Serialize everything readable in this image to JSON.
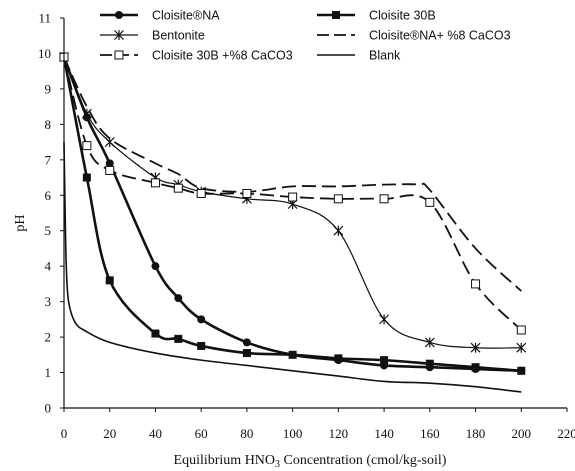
{
  "chart_data": {
    "type": "line",
    "title": "",
    "xlabel": "Equilibrium HNO3 Concentration (cmol/kg-soil)",
    "xlabel_parts": {
      "before": "Equilibrium HNO",
      "sub": "3",
      "after": " Concentration (cmol/kg-soil)"
    },
    "ylabel": "pH",
    "xlim": [
      0,
      220
    ],
    "ylim": [
      0,
      11
    ],
    "xticks": [
      "0",
      "20",
      "40",
      "60",
      "80",
      "100",
      "120",
      "140",
      "160",
      "180",
      "200",
      "220"
    ],
    "yticks": [
      "0",
      "1",
      "2",
      "3",
      "4",
      "5",
      "6",
      "7",
      "8",
      "9",
      "10",
      "11"
    ],
    "grid": false,
    "legend_position": "top",
    "series": [
      {
        "name": "Cloisite®NA",
        "marker": "filled-circle",
        "dash": "solid",
        "points": [
          [
            0,
            9.9
          ],
          [
            10,
            8.2
          ],
          [
            20,
            6.9
          ],
          [
            40,
            4.0
          ],
          [
            50,
            3.1
          ],
          [
            60,
            2.5
          ],
          [
            80,
            1.85
          ],
          [
            100,
            1.5
          ],
          [
            120,
            1.35
          ],
          [
            140,
            1.2
          ],
          [
            160,
            1.15
          ],
          [
            180,
            1.1
          ],
          [
            200,
            1.05
          ]
        ]
      },
      {
        "name": "Cloisite 30B",
        "marker": "filled-square",
        "dash": "solid",
        "points": [
          [
            0,
            9.9
          ],
          [
            10,
            6.5
          ],
          [
            20,
            3.6
          ],
          [
            40,
            2.1
          ],
          [
            50,
            1.95
          ],
          [
            60,
            1.75
          ],
          [
            80,
            1.55
          ],
          [
            100,
            1.5
          ],
          [
            120,
            1.4
          ],
          [
            140,
            1.35
          ],
          [
            160,
            1.25
          ],
          [
            180,
            1.15
          ],
          [
            200,
            1.05
          ]
        ]
      },
      {
        "name": "Bentonite",
        "marker": "asterisk",
        "dash": "solid",
        "points": [
          [
            0,
            9.9
          ],
          [
            10,
            8.3
          ],
          [
            20,
            7.5
          ],
          [
            40,
            6.5
          ],
          [
            50,
            6.3
          ],
          [
            60,
            6.1
          ],
          [
            80,
            5.9
          ],
          [
            100,
            5.75
          ],
          [
            120,
            5.0
          ],
          [
            140,
            2.5
          ],
          [
            160,
            1.85
          ],
          [
            180,
            1.7
          ],
          [
            200,
            1.7
          ]
        ]
      },
      {
        "name": "Cloisite®NA+ %8 CaCO3",
        "marker": "none",
        "dash": "long-dash",
        "points": [
          [
            0,
            9.9
          ],
          [
            10,
            8.5
          ],
          [
            20,
            7.6
          ],
          [
            40,
            6.9
          ],
          [
            50,
            6.6
          ],
          [
            60,
            6.2
          ],
          [
            80,
            6.1
          ],
          [
            100,
            6.25
          ],
          [
            120,
            6.25
          ],
          [
            140,
            6.3
          ],
          [
            155,
            6.3
          ],
          [
            160,
            6.15
          ],
          [
            180,
            4.5
          ],
          [
            200,
            3.3
          ]
        ]
      },
      {
        "name": "Cloisite 30B +%8 CaCO3",
        "marker": "open-square",
        "dash": "long-dash",
        "points": [
          [
            0,
            9.9
          ],
          [
            10,
            7.4
          ],
          [
            20,
            6.7
          ],
          [
            40,
            6.35
          ],
          [
            50,
            6.2
          ],
          [
            60,
            6.05
          ],
          [
            80,
            6.05
          ],
          [
            100,
            5.95
          ],
          [
            120,
            5.9
          ],
          [
            140,
            5.9
          ],
          [
            160,
            5.8
          ],
          [
            180,
            3.5
          ],
          [
            200,
            2.2
          ]
        ]
      },
      {
        "name": "Blank",
        "marker": "none",
        "dash": "solid",
        "points": [
          [
            0,
            7.5
          ],
          [
            0.5,
            5.5
          ],
          [
            1,
            4.0
          ],
          [
            2,
            3.0
          ],
          [
            5,
            2.4
          ],
          [
            10,
            2.15
          ],
          [
            20,
            1.85
          ],
          [
            40,
            1.55
          ],
          [
            60,
            1.35
          ],
          [
            80,
            1.2
          ],
          [
            100,
            1.05
          ],
          [
            120,
            0.9
          ],
          [
            140,
            0.75
          ],
          [
            160,
            0.7
          ],
          [
            180,
            0.6
          ],
          [
            200,
            0.45
          ]
        ]
      }
    ]
  }
}
